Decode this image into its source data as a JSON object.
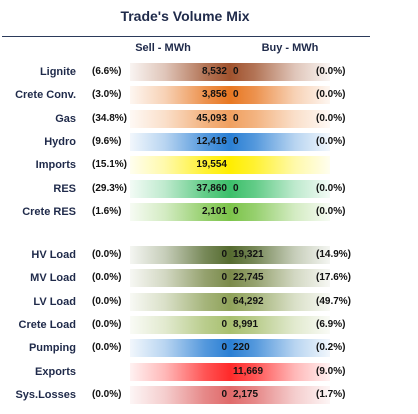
{
  "title": "Trade's Volume Mix",
  "columns": {
    "sell": "Sell - MWh",
    "buy": "Buy - MWh"
  },
  "colors": {
    "Lignite": "#a0522d",
    "Crete Conv.": "#e87722",
    "Gas": "#f0a060",
    "Hydro": "#2a7fd4",
    "Imports": "#ffee00",
    "RES": "#3cbf6a",
    "Crete RES": "#7cc44a",
    "HV Load": "#556b2f",
    "MV Load": "#7a8a4a",
    "LV Load": "#8fa25a",
    "Crete Load": "#a8c070",
    "Pumping": "#2a7fd4",
    "Exports": "#ff2a2a",
    "Sys.Losses": "#e06a6a"
  },
  "chart_data": {
    "type": "table",
    "title": "Trade's Volume Mix",
    "columns": [
      "Sell - MWh",
      "Buy - MWh"
    ],
    "rows": [
      {
        "label": "Lignite",
        "sell_pct": "(6.6%)",
        "sell": "8,532",
        "buy": "0",
        "buy_pct": "(0.0%)",
        "sell_num": 8532,
        "buy_num": 0
      },
      {
        "label": "Crete Conv.",
        "sell_pct": "(3.0%)",
        "sell": "3,856",
        "buy": "0",
        "buy_pct": "(0.0%)",
        "sell_num": 3856,
        "buy_num": 0
      },
      {
        "label": "Gas",
        "sell_pct": "(34.8%)",
        "sell": "45,093",
        "buy": "0",
        "buy_pct": "(0.0%)",
        "sell_num": 45093,
        "buy_num": 0
      },
      {
        "label": "Hydro",
        "sell_pct": "(9.6%)",
        "sell": "12,416",
        "buy": "0",
        "buy_pct": "(0.0%)",
        "sell_num": 12416,
        "buy_num": 0
      },
      {
        "label": "Imports",
        "sell_pct": "(15.1%)",
        "sell": "19,554",
        "buy": "",
        "buy_pct": "",
        "sell_num": 19554,
        "buy_num": 0
      },
      {
        "label": "RES",
        "sell_pct": "(29.3%)",
        "sell": "37,860",
        "buy": "0",
        "buy_pct": "(0.0%)",
        "sell_num": 37860,
        "buy_num": 0
      },
      {
        "label": "Crete RES",
        "sell_pct": "(1.6%)",
        "sell": "2,101",
        "buy": "0",
        "buy_pct": "(0.0%)",
        "sell_num": 2101,
        "buy_num": 0
      },
      {
        "label": "HV Load",
        "sell_pct": "(0.0%)",
        "sell": "0",
        "buy": "19,321",
        "buy_pct": "(14.9%)",
        "sell_num": 0,
        "buy_num": 19321
      },
      {
        "label": "MV Load",
        "sell_pct": "(0.0%)",
        "sell": "0",
        "buy": "22,745",
        "buy_pct": "(17.6%)",
        "sell_num": 0,
        "buy_num": 22745
      },
      {
        "label": "LV Load",
        "sell_pct": "(0.0%)",
        "sell": "0",
        "buy": "64,292",
        "buy_pct": "(49.7%)",
        "sell_num": 0,
        "buy_num": 64292
      },
      {
        "label": "Crete Load",
        "sell_pct": "(0.0%)",
        "sell": "0",
        "buy": "8,991",
        "buy_pct": "(6.9%)",
        "sell_num": 0,
        "buy_num": 8991
      },
      {
        "label": "Pumping",
        "sell_pct": "(0.0%)",
        "sell": "0",
        "buy": "220",
        "buy_pct": "(0.2%)",
        "sell_num": 0,
        "buy_num": 220
      },
      {
        "label": "Exports",
        "sell_pct": "",
        "sell": "",
        "buy": "11,669",
        "buy_pct": "(9.0%)",
        "sell_num": 0,
        "buy_num": 11669
      },
      {
        "label": "Sys.Losses",
        "sell_pct": "(0.0%)",
        "sell": "0",
        "buy": "2,175",
        "buy_pct": "(1.7%)",
        "sell_num": 0,
        "buy_num": 2175
      }
    ]
  }
}
